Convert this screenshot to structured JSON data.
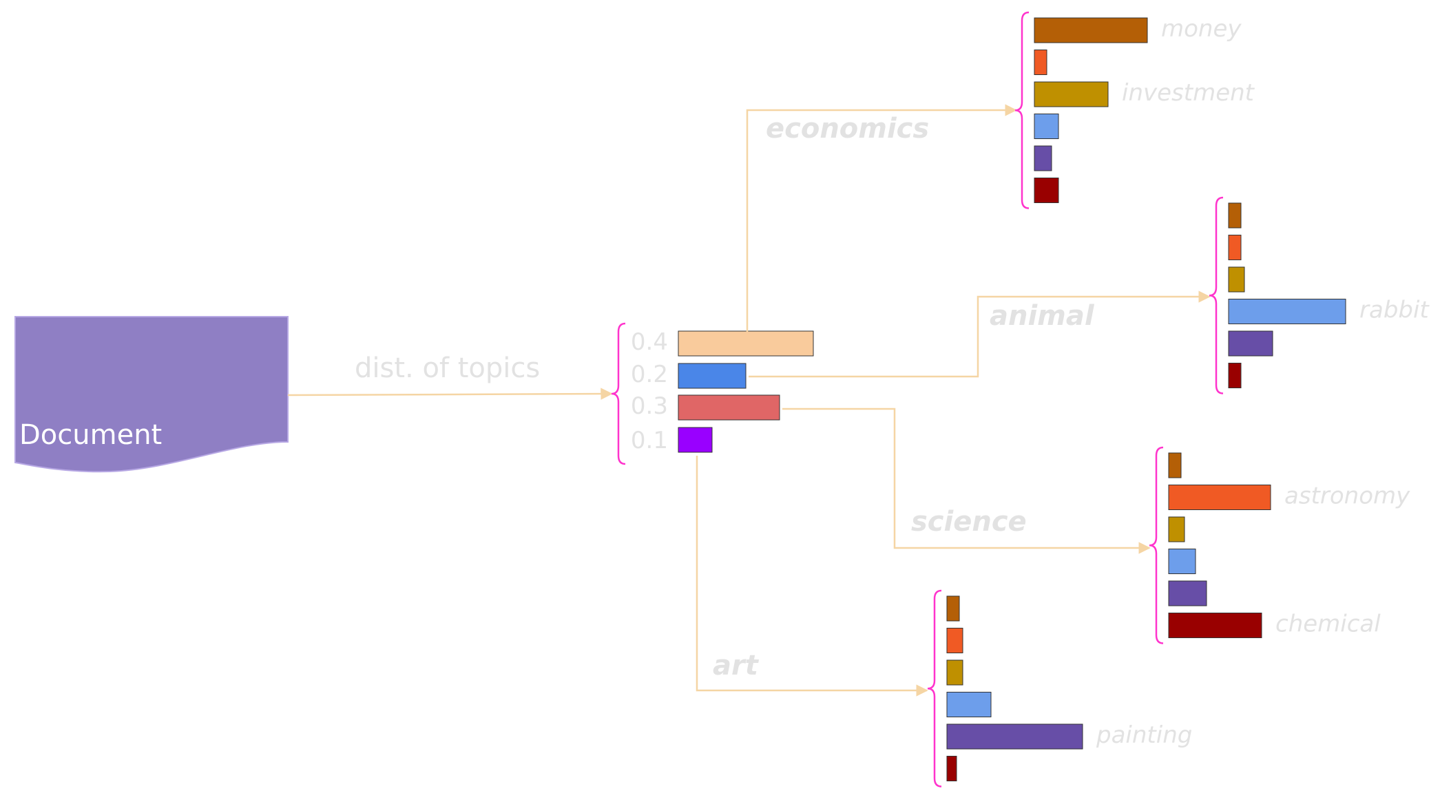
{
  "document_label": "Document",
  "edge_label": "dist. of topics",
  "colors": {
    "document_fill": "#8f7fc4",
    "document_stroke": "#b7a8e4",
    "arrow": "#f5d5a4",
    "brace": "#ff33cc",
    "label_text": "#e2e2e2",
    "word_palette": [
      "#b45f06",
      "#f05a24",
      "#bf9000",
      "#6d9eeb",
      "#674ea7",
      "#990000"
    ]
  },
  "topic_distribution": {
    "bars": [
      {
        "value": 0.4,
        "label": "0.4",
        "color": "#f9cb9c"
      },
      {
        "value": 0.2,
        "label": "0.2",
        "color": "#4a86e8"
      },
      {
        "value": 0.3,
        "label": "0.3",
        "color": "#e06666"
      },
      {
        "value": 0.1,
        "label": "0.1",
        "color": "#9900ff"
      }
    ]
  },
  "topics": [
    {
      "name": "economics",
      "weights": [
        0.8,
        0.09,
        0.52,
        0.17,
        0.12,
        0.17
      ],
      "labels": [
        "money",
        "",
        "investment",
        "",
        "",
        ""
      ]
    },
    {
      "name": "animal",
      "weights": [
        0.09,
        0.09,
        0.11,
        0.83,
        0.31,
        0.09
      ],
      "labels": [
        "",
        "",
        "",
        "rabbit",
        "",
        ""
      ]
    },
    {
      "name": "science",
      "weights": [
        0.09,
        0.72,
        0.11,
        0.19,
        0.27,
        0.66
      ],
      "labels": [
        "",
        "astronomy",
        "",
        "",
        "",
        "chemical"
      ]
    },
    {
      "name": "art",
      "weights": [
        0.09,
        0.11,
        0.11,
        0.31,
        0.96,
        0.05
      ],
      "labels": [
        "",
        "",
        "",
        "",
        "painting",
        ""
      ]
    }
  ]
}
